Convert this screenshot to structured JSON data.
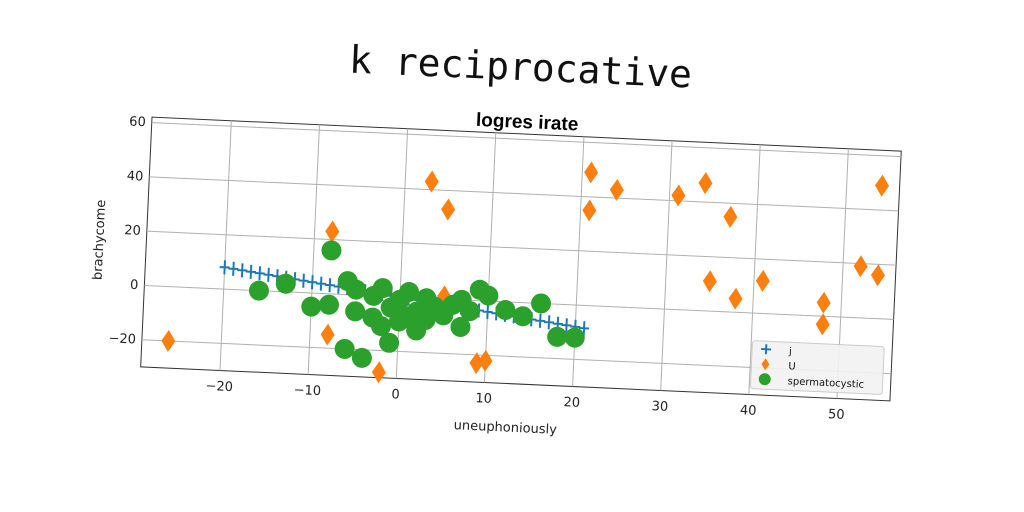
{
  "page_title": "k reciprocative",
  "chart_data": {
    "type": "scatter",
    "title": "logres irate",
    "xlabel": "uneuphoniously",
    "ylabel": "brachycome",
    "xlim": [
      -29,
      56
    ],
    "ylim": [
      -30,
      62
    ],
    "xticks": [
      -20,
      -10,
      0,
      10,
      20,
      30,
      40,
      50
    ],
    "yticks": [
      -20,
      0,
      20,
      40,
      60
    ],
    "grid": true,
    "legend_position": "lower-right",
    "series": [
      {
        "name": "j",
        "marker": "plus",
        "color": "#1f77b4",
        "x": [
          -20,
          -19,
          -18,
          -17,
          -16,
          -15,
          -14,
          -13,
          -12,
          -11,
          -10,
          -9,
          -8,
          -7,
          -6,
          -5,
          -4,
          -3,
          -2,
          -1,
          0,
          1,
          2,
          3,
          4,
          5,
          6,
          7,
          8,
          9,
          10,
          11,
          12,
          13,
          14,
          15,
          16,
          17,
          18,
          19,
          20,
          21
        ],
        "y": [
          8.0,
          7.6,
          7.2,
          6.8,
          6.4,
          6.0,
          5.6,
          5.2,
          4.8,
          4.4,
          4.0,
          3.6,
          3.2,
          2.8,
          2.4,
          2.0,
          1.6,
          1.2,
          0.8,
          0.4,
          0.0,
          -0.4,
          -0.8,
          -1.2,
          -1.6,
          -2.0,
          -2.4,
          -2.8,
          -3.2,
          -3.6,
          -4.0,
          -4.4,
          -4.8,
          -5.2,
          -5.6,
          -6.0,
          -6.4,
          -6.8,
          -7.2,
          -7.6,
          -8.0,
          -8.4
        ]
      },
      {
        "name": "U",
        "marker": "thin_diamond",
        "color": "#ff7f0e",
        "x": [
          -26,
          -8,
          -8,
          -2,
          3,
          5,
          5,
          9,
          10,
          21,
          21,
          24,
          31,
          34,
          35,
          37,
          38,
          41,
          48,
          48,
          52,
          54,
          54
        ],
        "y": [
          -20,
          23,
          -15,
          -28,
          43,
          33,
          1,
          -23,
          -22,
          35,
          49,
          43,
          42,
          47,
          11,
          35,
          5,
          12,
          5,
          -3,
          19,
          16,
          49
        ]
      },
      {
        "name": "spermatocystic",
        "marker": "circle",
        "color": "#2ca02c",
        "x": [
          -16,
          -13,
          -10,
          -8,
          -8,
          -6,
          -6,
          -5,
          -5,
          -4,
          -3,
          -3,
          -2,
          -2,
          -1,
          -1,
          0,
          0,
          1,
          1,
          2,
          2,
          3,
          3,
          4,
          5,
          6,
          7,
          7,
          8,
          9,
          10,
          12,
          14,
          16,
          18,
          20
        ],
        "y": [
          0,
          3,
          -5,
          -4,
          16,
          -20,
          5,
          -6,
          2,
          -23,
          -8,
          0,
          -11,
          3,
          -4,
          -17,
          -9,
          -1,
          -7,
          2,
          -5,
          -12,
          0,
          -8,
          -3,
          -6,
          -2,
          -10,
          0,
          -4,
          4,
          2,
          -3,
          -5,
          0,
          -12,
          -12
        ]
      }
    ]
  }
}
